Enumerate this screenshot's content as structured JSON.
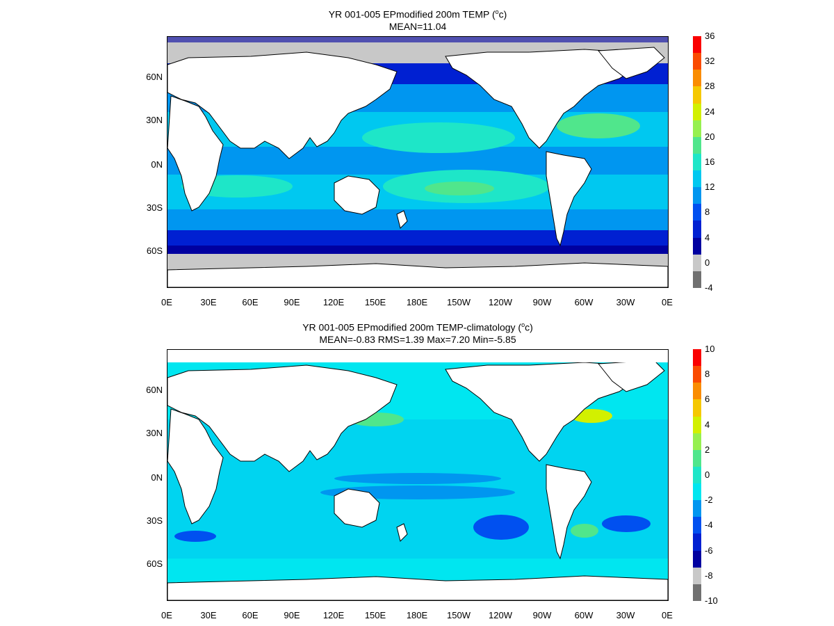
{
  "panels": [
    {
      "id": "mean",
      "title_main": "YR 001-005 EPmodified 200m TEMP (",
      "title_sup": "o",
      "title_end": "c)",
      "subtitle": "MEAN=11.04",
      "colorbar": {
        "labels": [
          "36",
          "32",
          "28",
          "24",
          "20",
          "16",
          "12",
          "8",
          "4",
          "0",
          "-4"
        ],
        "colors": [
          "#fa0000",
          "#fa4a00",
          "#fa8c00",
          "#f5c800",
          "#d2f000",
          "#96f050",
          "#50e68c",
          "#1ee6c8",
          "#00c8f0",
          "#0096f0",
          "#0050f0",
          "#0020d2",
          "#0000a0",
          "#c8c8c8",
          "#707070"
        ]
      }
    },
    {
      "id": "anomaly",
      "title_main": "YR 001-005 EPmodified 200m TEMP-climatology (",
      "title_sup": "o",
      "title_end": "c)",
      "subtitle": "MEAN=-0.83   RMS=1.39   Max=7.20   Min=-5.85",
      "colorbar": {
        "labels": [
          "10",
          "8",
          "6",
          "4",
          "2",
          "0",
          "-2",
          "-4",
          "-6",
          "-8",
          "-10"
        ],
        "colors": [
          "#fa0000",
          "#fa4a00",
          "#fa8c00",
          "#f5c800",
          "#d2f000",
          "#96f050",
          "#50e68c",
          "#1ee6c8",
          "#00e6f0",
          "#0096f0",
          "#0050f0",
          "#0020d2",
          "#0000a0",
          "#c8c8c8",
          "#707070"
        ]
      }
    }
  ],
  "map": {
    "lat_labels": [
      "60N",
      "30N",
      "0N",
      "30S",
      "60S"
    ],
    "lon_labels": [
      "0E",
      "30E",
      "60E",
      "90E",
      "120E",
      "150E",
      "180E",
      "150W",
      "120W",
      "90W",
      "60W",
      "30W",
      "0E"
    ],
    "colors": {
      "land": "#ffffff",
      "coastline": "#000000",
      "sea_ice_mean": "#c8c8c8",
      "deep_cold": "#0000a0",
      "cold": "#0020d2",
      "cool": "#0050f0",
      "mid": "#00c8f0",
      "warm": "#1ee6c8",
      "warmer": "#50e68c",
      "anom_base": "#00e6f0",
      "anom_neg": "#0096f0",
      "anom_pos": "#50e68c",
      "anom_strong_pos": "#d2f000"
    }
  }
}
